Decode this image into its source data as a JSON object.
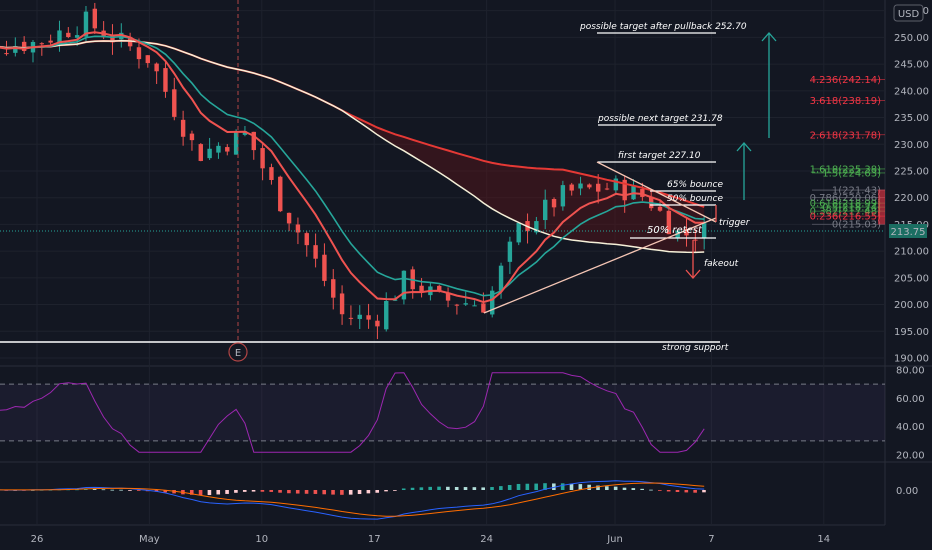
{
  "currency": "USD",
  "last_price": "213.75",
  "colors": {
    "background": "#131722",
    "up": "#26a69a",
    "down": "#ef5350",
    "ema_fast": "#ef5350",
    "ema_slow_green": "#26a69a",
    "sma_white": "#f5f0d8",
    "ma_red": "#e53935",
    "rsi": "#9c27b0",
    "fib_red": "#f23645",
    "fib_green": "#4caf50"
  },
  "chart_data": [
    {
      "type": "candlestick",
      "panel": "price",
      "y_ticks": [
        "255.00",
        "250.00",
        "245.00",
        "240.00",
        "235.00",
        "230.00",
        "225.00",
        "220.00",
        "215.00",
        "210.00",
        "205.00",
        "200.00",
        "195.00",
        "190.00"
      ],
      "ylim": [
        188.5,
        257
      ],
      "x_tick_labels": [
        "26",
        "May",
        "10",
        "17",
        "24",
        "Jun",
        "7",
        "14"
      ],
      "x_tick_dates": [
        "Apr 26",
        "May 3",
        "May 10",
        "May 17",
        "May 24",
        "Jun 1",
        "Jun 7",
        "Jun 14"
      ],
      "closes_approx": [
        {
          "date": "Apr 21",
          "close": 248
        },
        {
          "date": "Apr 26",
          "close": 249
        },
        {
          "date": "Apr 29",
          "close": 253
        },
        {
          "date": "May 3",
          "close": 246
        },
        {
          "date": "May 6",
          "close": 228
        },
        {
          "date": "May 9",
          "close": 232
        },
        {
          "date": "May 11",
          "close": 220
        },
        {
          "date": "May 13",
          "close": 210
        },
        {
          "date": "May 15",
          "close": 198
        },
        {
          "date": "May 17",
          "close": 197
        },
        {
          "date": "May 19",
          "close": 205
        },
        {
          "date": "May 21",
          "close": 201
        },
        {
          "date": "May 24",
          "close": 200
        },
        {
          "date": "May 26",
          "close": 214
        },
        {
          "date": "May 29",
          "close": 221
        },
        {
          "date": "Jun 1",
          "close": 222
        },
        {
          "date": "Jun 3",
          "close": 220
        },
        {
          "date": "Jun 5",
          "close": 213
        },
        {
          "date": "Jun 7",
          "close": 214
        }
      ],
      "annotations": [
        "possible target after pullback 252.70",
        "possible next target 231.78",
        "first target 227.10",
        "65% bounce",
        "50% bounce",
        "50% retest",
        "trigger",
        "fakeout",
        "strong support"
      ],
      "fib_levels": [
        {
          "label": "4.236(242.14)",
          "value": 242.14,
          "color": "#f23645"
        },
        {
          "label": "3.618(238.19)",
          "value": 238.19,
          "color": "#f23645"
        },
        {
          "label": "2.618(231.78)",
          "value": 231.78,
          "color": "#f23645"
        },
        {
          "label": "1.618(225.38)",
          "value": 225.38,
          "color": "#4caf50"
        },
        {
          "label": "1.5(224.63)",
          "value": 224.63,
          "color": "#4caf50"
        },
        {
          "label": "1(221.43)",
          "value": 221.43,
          "color": "#787b86"
        },
        {
          "label": "0.786(220.06)",
          "value": 220.06,
          "color": "#787b86"
        },
        {
          "label": "0.618(218.99)",
          "value": 218.99,
          "color": "#4caf50"
        },
        {
          "label": "0.5(218.24)",
          "value": 218.24,
          "color": "#4caf50"
        },
        {
          "label": "0.382(217.48)",
          "value": 217.48,
          "color": "#4caf50"
        },
        {
          "label": "0.236(216.55)",
          "value": 216.55,
          "color": "#f23645"
        },
        {
          "label": "0(215.03)",
          "value": 215.03,
          "color": "#787b86"
        }
      ],
      "earnings_marker": "E"
    },
    {
      "type": "line",
      "panel": "rsi",
      "y_ticks": [
        "80.00",
        "60.00",
        "40.00",
        "20.00"
      ],
      "ylim": [
        17,
        82
      ],
      "bands": [
        70,
        30
      ]
    },
    {
      "type": "histogram",
      "panel": "macd",
      "y_ticks": [
        "0.00"
      ]
    }
  ]
}
